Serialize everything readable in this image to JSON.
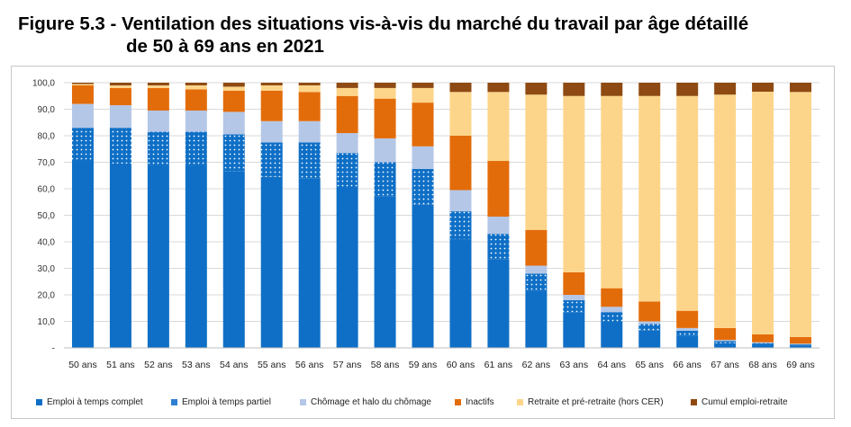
{
  "title": {
    "line1": "Figure 5.3 - Ventilation des situations vis-à-vis du marché du travail par âge détaillé",
    "line2": "de 50 à 69 ans en 2021"
  },
  "colors": {
    "emploi_complet": "#0f6fc6",
    "emploi_partiel_dots": "#ffffff",
    "chomage": "#b4c7e7",
    "inactifs": "#e36c0a",
    "retraite": "#fdd58a",
    "cumul": "#8e4a12",
    "grid": "#d9d9d9"
  },
  "chart_data": {
    "type": "bar",
    "stacked": true,
    "categories": [
      "50 ans",
      "51 ans",
      "52 ans",
      "53 ans",
      "54 ans",
      "55 ans",
      "56 ans",
      "57 ans",
      "58 ans",
      "59 ans",
      "60 ans",
      "61 ans",
      "62 ans",
      "63 ans",
      "64 ans",
      "65 ans",
      "66 ans",
      "67 ans",
      "68 ans",
      "69 ans"
    ],
    "ylim": [
      0,
      100
    ],
    "yticks": [
      "-",
      "10,0",
      "20,0",
      "30,0",
      "40,0",
      "50,0",
      "60,0",
      "70,0",
      "80,0",
      "90,0",
      "100,0"
    ],
    "grid": true,
    "legend_position": "bottom",
    "series": [
      {
        "name": "Emploi à temps complet",
        "values": [
          70.5,
          69.5,
          69,
          69,
          66.5,
          64.5,
          64,
          60,
          57,
          54,
          41,
          33.5,
          21.5,
          13.5,
          10,
          6.5,
          4.5,
          1.8,
          1.2,
          0.8
        ]
      },
      {
        "name": "Emploi à temps partiel",
        "values": [
          12.5,
          13.5,
          12.5,
          12.5,
          14,
          13,
          13.5,
          13.5,
          13,
          13.5,
          10.5,
          9.5,
          6.5,
          4.5,
          3.5,
          2.5,
          2,
          0.8,
          0.6,
          0.5
        ]
      },
      {
        "name": "Chômage et halo du chômage",
        "values": [
          9,
          8.5,
          8,
          8,
          8.5,
          8,
          8,
          7.5,
          9,
          8.5,
          8,
          6.5,
          3,
          2,
          2,
          1,
          1,
          0.4,
          0.3,
          0.3
        ]
      },
      {
        "name": "Inactifs",
        "values": [
          7,
          6.5,
          8.5,
          8,
          8,
          11.5,
          11,
          14,
          15,
          16.5,
          20.5,
          21,
          13.5,
          8.5,
          7,
          7.5,
          6.5,
          4.5,
          3,
          2.5
        ]
      },
      {
        "name": "Retraite et pré-retraite (hors CER)",
        "values": [
          0.5,
          1,
          1,
          1.5,
          1.5,
          2,
          2.5,
          3,
          4,
          5.5,
          16.5,
          26,
          51,
          66.5,
          72.5,
          77.5,
          81,
          88,
          91.5,
          92.4
        ]
      },
      {
        "name": "Cumul emploi-retraite",
        "values": [
          0.5,
          1,
          1,
          1,
          1.5,
          1,
          1,
          2,
          2,
          2,
          3.5,
          3.5,
          4.5,
          5,
          5,
          5,
          5,
          4.5,
          3.4,
          3.5
        ]
      }
    ]
  }
}
